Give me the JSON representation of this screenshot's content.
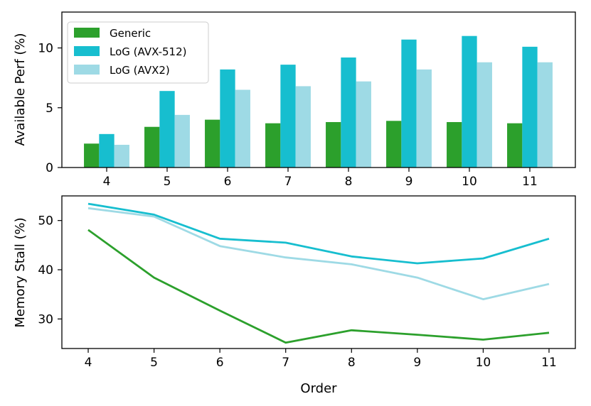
{
  "chart_data": [
    {
      "type": "bar",
      "title": "",
      "xlabel": "",
      "ylabel": "Available Perf (%)",
      "categories": [
        "4",
        "5",
        "6",
        "7",
        "8",
        "9",
        "10",
        "11"
      ],
      "ylim": [
        0,
        13
      ],
      "yticks": [
        "0",
        "5",
        "10"
      ],
      "legend_position": "top-left",
      "series": [
        {
          "name": "Generic",
          "color": "#2ca02c",
          "values": [
            2.0,
            3.4,
            4.0,
            3.7,
            3.8,
            3.9,
            3.8,
            3.7
          ]
        },
        {
          "name": "LoG (AVX-512)",
          "color": "#17becf",
          "values": [
            2.8,
            6.4,
            8.2,
            8.6,
            9.2,
            10.7,
            11.0,
            10.1
          ]
        },
        {
          "name": "LoG (AVX2)",
          "color": "#9edae5",
          "values": [
            1.9,
            4.4,
            6.5,
            6.8,
            7.2,
            8.2,
            8.8,
            8.8
          ]
        }
      ]
    },
    {
      "type": "line",
      "title": "",
      "xlabel": "Order",
      "ylabel": "Memory Stall (%)",
      "x": [
        4,
        5,
        6,
        7,
        8,
        9,
        10,
        11
      ],
      "xticks": [
        "4",
        "5",
        "6",
        "7",
        "8",
        "9",
        "10",
        "11"
      ],
      "xlim": [
        3.6,
        11.4
      ],
      "ylim": [
        24,
        55
      ],
      "yticks": [
        "30",
        "40",
        "50"
      ],
      "series": [
        {
          "color": "#17becf",
          "values": [
            53.4,
            51.2,
            46.3,
            45.5,
            42.7,
            41.3,
            42.3,
            46.3
          ]
        },
        {
          "color": "#9edae5",
          "values": [
            52.5,
            50.8,
            44.8,
            42.5,
            41.1,
            38.4,
            34.0,
            37.1
          ]
        },
        {
          "color": "#2ca02c",
          "values": [
            48.1,
            38.4,
            31.7,
            25.2,
            27.7,
            26.8,
            25.8,
            27.2
          ]
        }
      ]
    }
  ]
}
